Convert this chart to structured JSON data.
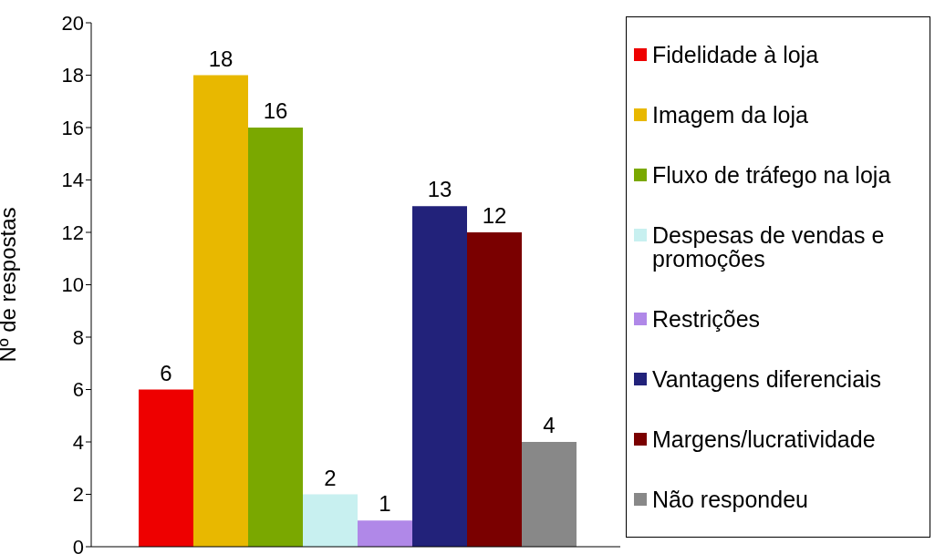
{
  "chart_data": {
    "type": "bar",
    "ylabel": "Nº  de respostas",
    "categories": [
      null
    ],
    "series": [
      {
        "name": "Fidelidade à loja",
        "color": "#ee0000",
        "values": [
          6
        ]
      },
      {
        "name": "Imagem da loja",
        "color": "#e8b800",
        "values": [
          18
        ]
      },
      {
        "name": "Fluxo de tráfego na loja",
        "color": "#7aa800",
        "values": [
          16
        ]
      },
      {
        "name": "Despesas de vendas e promoções",
        "color": "#c8f0f0",
        "values": [
          2
        ]
      },
      {
        "name": "Restrições",
        "color": "#b088e8",
        "values": [
          1
        ]
      },
      {
        "name": "Vantagens diferenciais",
        "color": "#22227a",
        "values": [
          13
        ]
      },
      {
        "name": "Margens/lucratividade",
        "color": "#7a0000",
        "values": [
          12
        ]
      },
      {
        "name": "Não respondeu",
        "color": "#888888",
        "values": [
          4
        ]
      }
    ],
    "ylim": [
      0,
      20
    ],
    "yticks": [
      0,
      2,
      4,
      6,
      8,
      10,
      12,
      14,
      16,
      18,
      20
    ],
    "data_labels": true,
    "legend": "right"
  }
}
